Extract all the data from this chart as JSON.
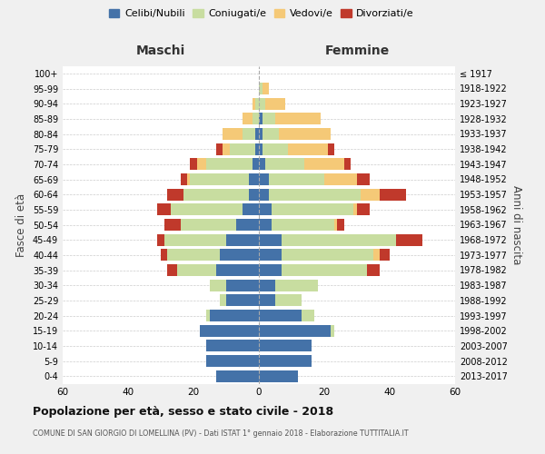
{
  "age_groups": [
    "0-4",
    "5-9",
    "10-14",
    "15-19",
    "20-24",
    "25-29",
    "30-34",
    "35-39",
    "40-44",
    "45-49",
    "50-54",
    "55-59",
    "60-64",
    "65-69",
    "70-74",
    "75-79",
    "80-84",
    "85-89",
    "90-94",
    "95-99",
    "100+"
  ],
  "birth_years": [
    "2013-2017",
    "2008-2012",
    "2003-2007",
    "1998-2002",
    "1993-1997",
    "1988-1992",
    "1983-1987",
    "1978-1982",
    "1973-1977",
    "1968-1972",
    "1963-1967",
    "1958-1962",
    "1953-1957",
    "1948-1952",
    "1943-1947",
    "1938-1942",
    "1933-1937",
    "1928-1932",
    "1923-1927",
    "1918-1922",
    "≤ 1917"
  ],
  "male": {
    "celibi": [
      13,
      16,
      16,
      18,
      15,
      10,
      10,
      13,
      12,
      10,
      7,
      5,
      3,
      3,
      2,
      1,
      1,
      0,
      0,
      0,
      0
    ],
    "coniugati": [
      0,
      0,
      0,
      0,
      1,
      2,
      5,
      12,
      16,
      19,
      17,
      22,
      20,
      18,
      14,
      8,
      4,
      2,
      1,
      0,
      0
    ],
    "vedovi": [
      0,
      0,
      0,
      0,
      0,
      0,
      0,
      0,
      0,
      0,
      0,
      0,
      0,
      1,
      3,
      2,
      6,
      3,
      1,
      0,
      0
    ],
    "divorziati": [
      0,
      0,
      0,
      0,
      0,
      0,
      0,
      3,
      2,
      2,
      5,
      4,
      5,
      2,
      2,
      2,
      0,
      0,
      0,
      0,
      0
    ]
  },
  "female": {
    "nubili": [
      12,
      16,
      16,
      22,
      13,
      5,
      5,
      7,
      7,
      7,
      4,
      4,
      3,
      3,
      2,
      1,
      1,
      1,
      0,
      0,
      0
    ],
    "coniugate": [
      0,
      0,
      0,
      1,
      4,
      8,
      13,
      26,
      28,
      35,
      19,
      25,
      28,
      17,
      12,
      8,
      5,
      4,
      2,
      1,
      0
    ],
    "vedove": [
      0,
      0,
      0,
      0,
      0,
      0,
      0,
      0,
      2,
      0,
      1,
      1,
      6,
      10,
      12,
      12,
      16,
      14,
      6,
      2,
      0
    ],
    "divorziate": [
      0,
      0,
      0,
      0,
      0,
      0,
      0,
      4,
      3,
      8,
      2,
      4,
      8,
      4,
      2,
      2,
      0,
      0,
      0,
      0,
      0
    ]
  },
  "colors": {
    "celibi": "#4472a8",
    "coniugati": "#c8dda0",
    "vedovi": "#f5c977",
    "divorziati": "#c0392b"
  },
  "title": "Popolazione per età, sesso e stato civile - 2018",
  "subtitle": "COMUNE DI SAN GIORGIO DI LOMELLINA (PV) - Dati ISTAT 1° gennaio 2018 - Elaborazione TUTTITALIA.IT",
  "xlabel_left": "Maschi",
  "xlabel_right": "Femmine",
  "ylabel_left": "Fasce di età",
  "ylabel_right": "Anni di nascita",
  "xlim": 60,
  "bg_color": "#f0f0f0",
  "plot_bg": "#ffffff"
}
